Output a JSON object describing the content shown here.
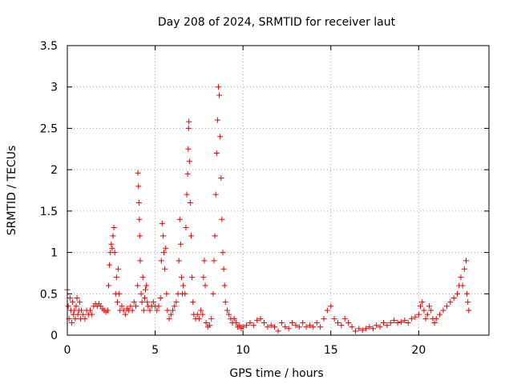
{
  "chart_data": {
    "type": "scatter",
    "title": "Day 208 of 2024, SRMTID for receiver laut",
    "xlabel": "GPS time / hours",
    "ylabel": "SRMTID / TECUs",
    "xlim": [
      0,
      24
    ],
    "ylim": [
      0,
      3.5
    ],
    "xticks": [
      0,
      5,
      10,
      15,
      20
    ],
    "yticks": [
      0,
      0.5,
      1,
      1.5,
      2,
      2.5,
      3,
      3.5
    ],
    "xtick_labels": [
      "0",
      "5",
      "10",
      "15",
      "20"
    ],
    "ytick_labels": [
      "0",
      "0.5",
      "1",
      "1.5",
      "2",
      "2.5",
      "3",
      "3.5"
    ],
    "grid": true,
    "marker": "+",
    "color": "#e60000",
    "series": [
      {
        "name": "SRMTID",
        "points": [
          [
            0.0,
            0.55
          ],
          [
            0.05,
            0.35
          ],
          [
            0.1,
            0.2
          ],
          [
            0.15,
            0.45
          ],
          [
            0.2,
            0.3
          ],
          [
            0.25,
            0.15
          ],
          [
            0.3,
            0.4
          ],
          [
            0.35,
            0.25
          ],
          [
            0.4,
            0.3
          ],
          [
            0.45,
            0.2
          ],
          [
            0.5,
            0.35
          ],
          [
            0.55,
            0.45
          ],
          [
            0.6,
            0.25
          ],
          [
            0.65,
            0.3
          ],
          [
            0.7,
            0.4
          ],
          [
            0.75,
            0.2
          ],
          [
            0.8,
            0.3
          ],
          [
            0.9,
            0.25
          ],
          [
            1.0,
            0.2
          ],
          [
            1.1,
            0.3
          ],
          [
            1.2,
            0.25
          ],
          [
            1.3,
            0.3
          ],
          [
            1.4,
            0.25
          ],
          [
            1.5,
            0.35
          ],
          [
            1.6,
            0.38
          ],
          [
            1.7,
            0.35
          ],
          [
            1.8,
            0.38
          ],
          [
            1.9,
            0.35
          ],
          [
            2.0,
            0.32
          ],
          [
            2.1,
            0.3
          ],
          [
            2.2,
            0.28
          ],
          [
            2.3,
            0.3
          ],
          [
            2.35,
            0.6
          ],
          [
            2.4,
            0.85
          ],
          [
            2.45,
            1.0
          ],
          [
            2.5,
            1.1
          ],
          [
            2.55,
            1.05
          ],
          [
            2.6,
            1.2
          ],
          [
            2.65,
            1.3
          ],
          [
            2.7,
            1.0
          ],
          [
            2.75,
            0.5
          ],
          [
            2.8,
            0.7
          ],
          [
            2.85,
            0.4
          ],
          [
            2.9,
            0.8
          ],
          [
            2.95,
            0.5
          ],
          [
            3.0,
            0.3
          ],
          [
            3.1,
            0.35
          ],
          [
            3.2,
            0.3
          ],
          [
            3.3,
            0.25
          ],
          [
            3.4,
            0.32
          ],
          [
            3.5,
            0.3
          ],
          [
            3.6,
            0.35
          ],
          [
            3.7,
            0.3
          ],
          [
            3.8,
            0.4
          ],
          [
            3.9,
            0.35
          ],
          [
            4.0,
            0.6
          ],
          [
            4.02,
            1.96
          ],
          [
            4.05,
            1.8
          ],
          [
            4.08,
            1.6
          ],
          [
            4.1,
            1.4
          ],
          [
            4.12,
            1.2
          ],
          [
            4.15,
            0.9
          ],
          [
            4.2,
            0.5
          ],
          [
            4.25,
            0.4
          ],
          [
            4.3,
            0.7
          ],
          [
            4.35,
            0.3
          ],
          [
            4.4,
            0.45
          ],
          [
            4.45,
            0.55
          ],
          [
            4.5,
            0.6
          ],
          [
            4.55,
            0.4
          ],
          [
            4.6,
            0.35
          ],
          [
            4.7,
            0.3
          ],
          [
            4.8,
            0.35
          ],
          [
            4.9,
            0.4
          ],
          [
            5.0,
            0.35
          ],
          [
            5.1,
            0.3
          ],
          [
            5.2,
            0.35
          ],
          [
            5.3,
            0.45
          ],
          [
            5.35,
            0.9
          ],
          [
            5.4,
            1.35
          ],
          [
            5.45,
            1.2
          ],
          [
            5.5,
            1.0
          ],
          [
            5.55,
            0.8
          ],
          [
            5.6,
            1.05
          ],
          [
            5.65,
            0.5
          ],
          [
            5.7,
            0.3
          ],
          [
            5.8,
            0.2
          ],
          [
            5.9,
            0.25
          ],
          [
            6.0,
            0.3
          ],
          [
            6.1,
            0.35
          ],
          [
            6.2,
            0.4
          ],
          [
            6.3,
            0.5
          ],
          [
            6.35,
            0.9
          ],
          [
            6.4,
            1.4
          ],
          [
            6.45,
            1.1
          ],
          [
            6.5,
            0.7
          ],
          [
            6.55,
            0.5
          ],
          [
            6.6,
            0.6
          ],
          [
            6.7,
            0.5
          ],
          [
            6.75,
            1.3
          ],
          [
            6.8,
            1.7
          ],
          [
            6.85,
            1.95
          ],
          [
            6.88,
            2.25
          ],
          [
            6.9,
            2.5
          ],
          [
            6.92,
            2.58
          ],
          [
            6.95,
            2.1
          ],
          [
            7.0,
            1.6
          ],
          [
            7.05,
            1.2
          ],
          [
            7.1,
            0.7
          ],
          [
            7.15,
            0.4
          ],
          [
            7.2,
            0.25
          ],
          [
            7.3,
            0.2
          ],
          [
            7.4,
            0.25
          ],
          [
            7.5,
            0.2
          ],
          [
            7.6,
            0.3
          ],
          [
            7.7,
            0.25
          ],
          [
            7.75,
            0.7
          ],
          [
            7.8,
            0.9
          ],
          [
            7.85,
            0.6
          ],
          [
            7.9,
            0.15
          ],
          [
            8.0,
            0.1
          ],
          [
            8.1,
            0.12
          ],
          [
            8.2,
            0.2
          ],
          [
            8.3,
            0.5
          ],
          [
            8.35,
            0.9
          ],
          [
            8.4,
            1.2
          ],
          [
            8.45,
            1.7
          ],
          [
            8.5,
            2.2
          ],
          [
            8.55,
            2.6
          ],
          [
            8.6,
            3.0
          ],
          [
            8.65,
            2.9
          ],
          [
            8.7,
            2.4
          ],
          [
            8.75,
            1.9
          ],
          [
            8.8,
            1.4
          ],
          [
            8.85,
            1.0
          ],
          [
            8.9,
            0.8
          ],
          [
            8.95,
            0.6
          ],
          [
            9.0,
            0.4
          ],
          [
            9.1,
            0.3
          ],
          [
            9.2,
            0.25
          ],
          [
            9.3,
            0.2
          ],
          [
            9.4,
            0.15
          ],
          [
            9.5,
            0.2
          ],
          [
            9.6,
            0.15
          ],
          [
            9.7,
            0.1
          ],
          [
            9.8,
            0.12
          ],
          [
            9.9,
            0.08
          ],
          [
            10.0,
            0.1
          ],
          [
            10.2,
            0.12
          ],
          [
            10.4,
            0.15
          ],
          [
            10.6,
            0.12
          ],
          [
            10.8,
            0.18
          ],
          [
            11.0,
            0.2
          ],
          [
            11.2,
            0.15
          ],
          [
            11.4,
            0.1
          ],
          [
            11.6,
            0.12
          ],
          [
            11.8,
            0.1
          ],
          [
            12.0,
            0.05
          ],
          [
            12.2,
            0.15
          ],
          [
            12.4,
            0.1
          ],
          [
            12.6,
            0.08
          ],
          [
            12.8,
            0.15
          ],
          [
            13.0,
            0.12
          ],
          [
            13.2,
            0.1
          ],
          [
            13.4,
            0.15
          ],
          [
            13.6,
            0.1
          ],
          [
            13.8,
            0.12
          ],
          [
            14.0,
            0.1
          ],
          [
            14.2,
            0.15
          ],
          [
            14.4,
            0.1
          ],
          [
            14.6,
            0.2
          ],
          [
            14.8,
            0.3
          ],
          [
            15.0,
            0.35
          ],
          [
            15.2,
            0.2
          ],
          [
            15.4,
            0.15
          ],
          [
            15.6,
            0.12
          ],
          [
            15.8,
            0.2
          ],
          [
            16.0,
            0.15
          ],
          [
            16.2,
            0.1
          ],
          [
            16.4,
            0.05
          ],
          [
            16.6,
            0.08
          ],
          [
            16.8,
            0.06
          ],
          [
            17.0,
            0.08
          ],
          [
            17.2,
            0.1
          ],
          [
            17.4,
            0.08
          ],
          [
            17.6,
            0.12
          ],
          [
            17.8,
            0.1
          ],
          [
            18.0,
            0.15
          ],
          [
            18.2,
            0.12
          ],
          [
            18.4,
            0.15
          ],
          [
            18.6,
            0.18
          ],
          [
            18.8,
            0.15
          ],
          [
            19.0,
            0.16
          ],
          [
            19.2,
            0.18
          ],
          [
            19.4,
            0.15
          ],
          [
            19.6,
            0.2
          ],
          [
            19.8,
            0.22
          ],
          [
            20.0,
            0.25
          ],
          [
            20.1,
            0.35
          ],
          [
            20.2,
            0.4
          ],
          [
            20.3,
            0.3
          ],
          [
            20.4,
            0.2
          ],
          [
            20.5,
            0.25
          ],
          [
            20.6,
            0.35
          ],
          [
            20.7,
            0.3
          ],
          [
            20.8,
            0.2
          ],
          [
            20.9,
            0.15
          ],
          [
            21.0,
            0.2
          ],
          [
            21.2,
            0.25
          ],
          [
            21.4,
            0.3
          ],
          [
            21.6,
            0.35
          ],
          [
            21.8,
            0.4
          ],
          [
            22.0,
            0.45
          ],
          [
            22.2,
            0.5
          ],
          [
            22.3,
            0.6
          ],
          [
            22.4,
            0.7
          ],
          [
            22.5,
            0.6
          ],
          [
            22.6,
            0.8
          ],
          [
            22.7,
            0.9
          ],
          [
            22.75,
            0.5
          ],
          [
            22.8,
            0.4
          ],
          [
            22.85,
            0.3
          ]
        ]
      }
    ]
  }
}
